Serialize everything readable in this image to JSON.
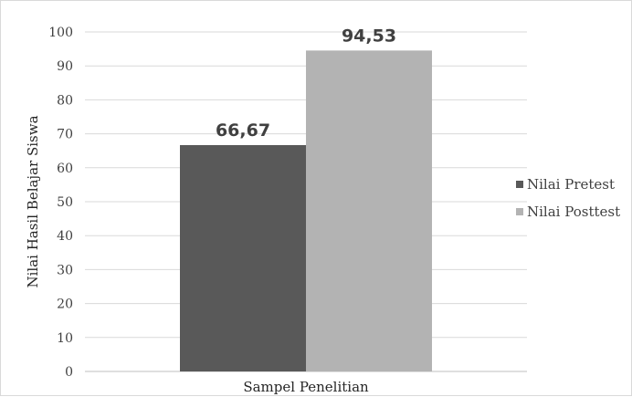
{
  "chart_data": {
    "type": "bar",
    "title": "",
    "xlabel": "Sampel Penelitian",
    "ylabel": "Nilai Hasil Belajar Siswa",
    "categories": [
      "Sampel Penelitian"
    ],
    "ylim": [
      0,
      100
    ],
    "yticks": [
      "0",
      "10",
      "20",
      "30",
      "40",
      "50",
      "60",
      "70",
      "80",
      "90",
      "100"
    ],
    "grid": true,
    "legend_position": "right",
    "series": [
      {
        "name": "Nilai Pretest",
        "values": [
          66.67
        ],
        "label": "66,67",
        "color": "#595959"
      },
      {
        "name": "Nilai Posttest",
        "values": [
          94.53
        ],
        "label": "94,53",
        "color": "#b3b3b3"
      }
    ]
  }
}
